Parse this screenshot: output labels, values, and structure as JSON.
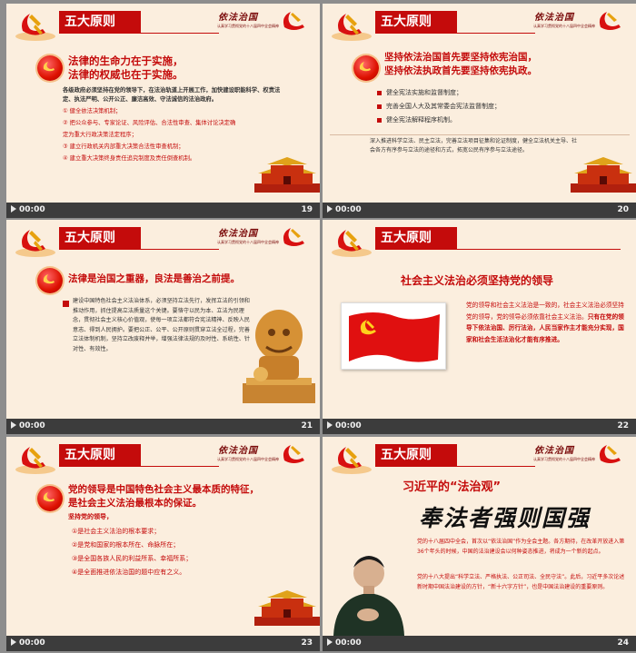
{
  "colors": {
    "accent": "#c40b0b",
    "slide_bg": "#fbeede",
    "footer_bg": "#3c3c3c"
  },
  "common": {
    "section_title": "五大原则",
    "calligraphy": "依法治国",
    "calligraphy_sub": "认真学习贯彻党的十八届四中全会精神"
  },
  "slides": [
    {
      "id": "19",
      "time": "00:00",
      "lead": [
        "法律的生命力在于实施，",
        "法律的权威也在于实施。"
      ],
      "intro": "各级政府必须坚持在党的领导下，在法治轨道上开展工作，加快建设职能科学、权责法定、执法严明、公开公正、廉洁高效、守法诚信的法治政府。",
      "items": [
        "① 健全依法决策机制；",
        "② 把公众参与、专家论证、风险评估、合法性审查、集体讨论决定确",
        "定为重大行政决策法定程序；",
        "③ 建立行政机关内部重大决策合法性审查机制；",
        "④ 建立重大决策终身责任追究制度及责任倒查机制。"
      ]
    },
    {
      "id": "20",
      "time": "00:00",
      "lead": [
        "坚持依法治国首先要坚持依宪治国，",
        "坚持依法执政首先要坚持依宪执政。"
      ],
      "bullets": [
        "健全宪法实施和监督制度；",
        "完善全国人大及其常委会宪法监督制度；",
        "健全宪法解释程序机制。"
      ],
      "note": "深入推进科学立法、民主立法，完善立法项目征集和论证制度，健全立法机关主导、社会各方有序参与立法的途径和方式，拓宽公民有序参与立法途径。"
    },
    {
      "id": "21",
      "time": "00:00",
      "lead": [
        "法律是治国之重器，良法是善治之前提。"
      ],
      "body": "建设中国特色社会主义法治体系，必须坚持立法先行，发挥立法的引领和推动作用，抓住提高立法质量这个关键。要恪守以民为本、立法为民理念，贯彻社会主义核心价值观，使每一项立法都符合宪法精神、反映人民意志、得到人民拥护。要把公正、公平、公开原则贯穿立法全过程，完善立法体制机制，坚持立改废释并举，增强法律法规的及时性、系统性、针对性、有效性。"
    },
    {
      "id": "22",
      "time": "00:00",
      "heading": "社会主义法治必须坚持党的领导",
      "body_normal": "党的领导和社会主义法治是一致的，社会主义法治必须坚持党的领导，党的领导必须依靠社会主义法治。",
      "body_bold": "只有在党的领导下依法治国、厉行法治，人民当家作主才能充分实现，国家和社会生活法治化才能有序推进。"
    },
    {
      "id": "23",
      "time": "00:00",
      "lead": [
        "党的领导是中国特色社会主义最本质的特征，",
        "是社会主义法治最根本的保证。"
      ],
      "sub": "坚持党的领导，",
      "items": [
        "①是社会主义法治的根本要求；",
        "②是党和国家的根本所在、命脉所在；",
        "③是全国各族人民的利益所系、幸福所系；",
        "④是全面推进依法治国的题中应有之义。"
      ]
    },
    {
      "id": "24",
      "time": "00:00",
      "heading_a": "习近平的",
      "heading_b": "“法治观”",
      "motto": "奉法者强则国强",
      "para1": "党的十八届四中全会，首次以“依法治国”作为全会主题。各方期待，在改革开放进入第36个年头的时候，中国的法治建设会以何种姿态推进，将成为一个新的起点。",
      "para2": "党的十八大提出“科学立法、严格执法、公正司法、全民守法”。此后，习近平多次论述新时期中国法治建设的方针，“新十六字方针”，也是中国法治建设的重要原则。"
    }
  ]
}
